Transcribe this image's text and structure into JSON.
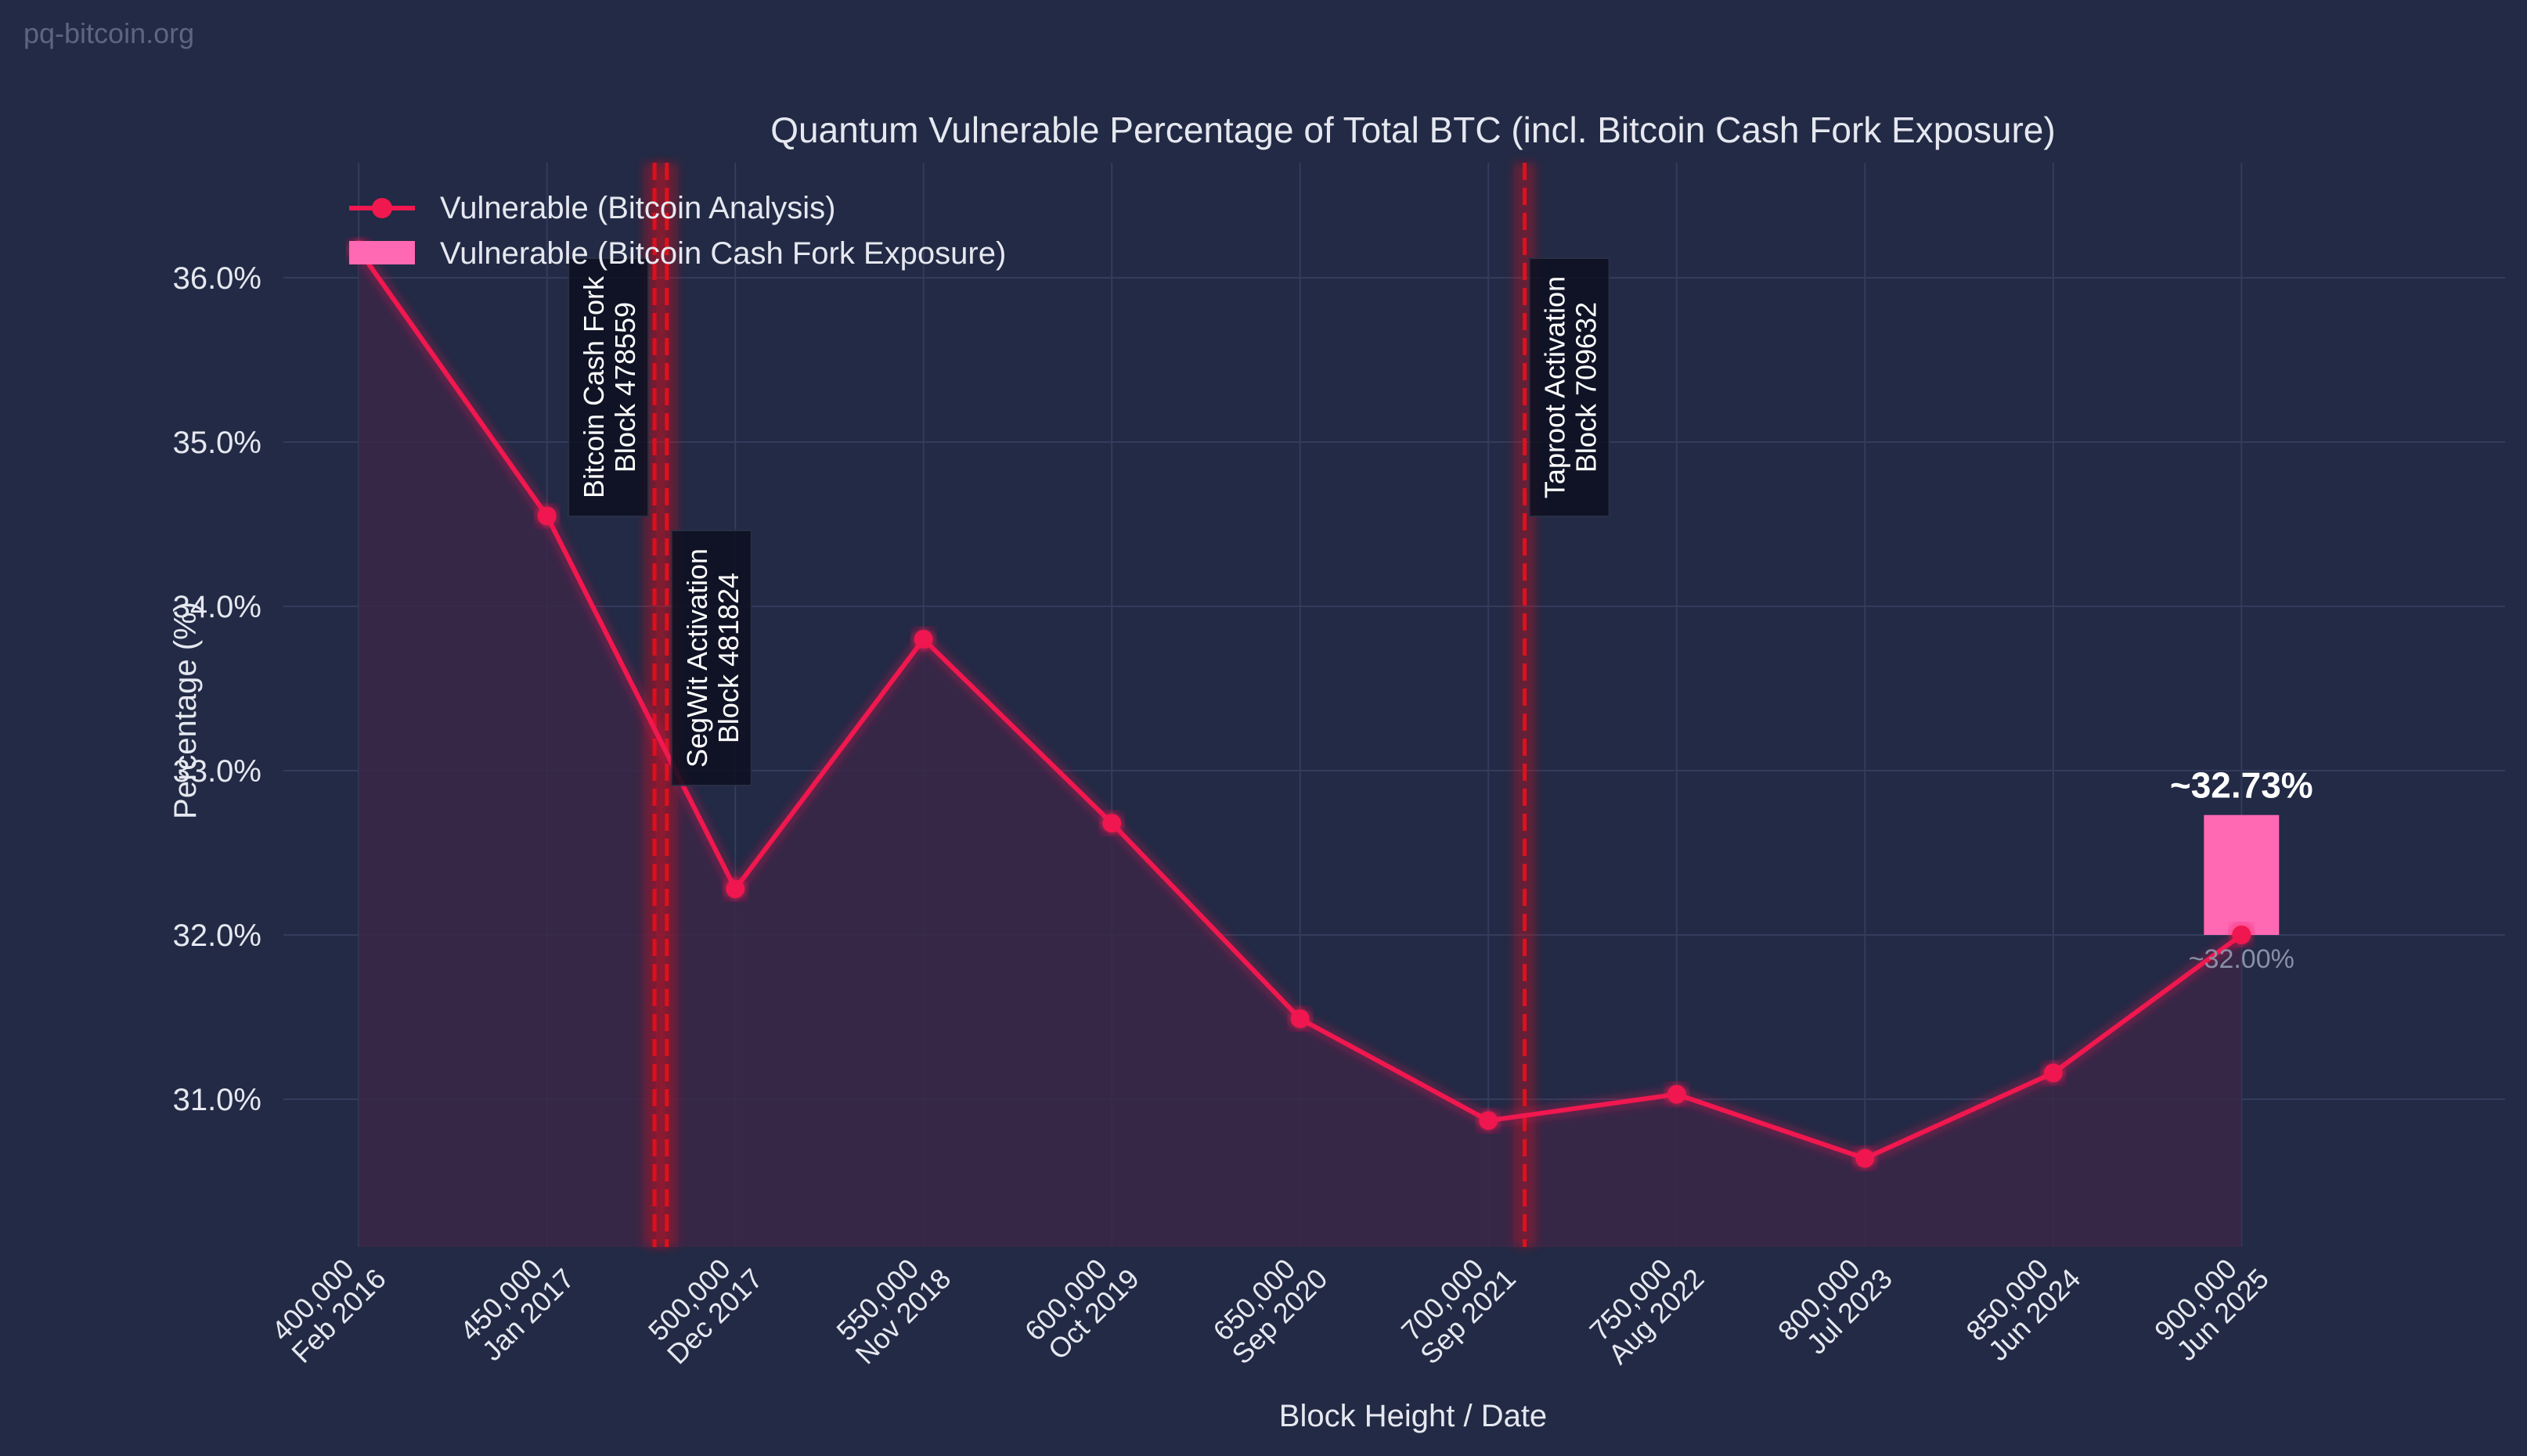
{
  "watermark": "pq-bitcoin.org",
  "colors": {
    "background": "#222a45",
    "line": "#f0184f",
    "fill": "#3a2748",
    "grid": "#333c5c",
    "bar": "#ff69b4",
    "event_line": "#e0101c"
  },
  "chart_data": {
    "type": "line",
    "title": "Quantum Vulnerable Percentage of Total BTC (incl. Bitcoin Cash Fork Exposure)",
    "xlabel": "Block Height / Date",
    "ylabel": "Percentage (%)",
    "xlim": [
      380000,
      970000
    ],
    "ylim": [
      30.1,
      36.7
    ],
    "grid": true,
    "legend_position": "top-left",
    "x_ticks": [
      {
        "value": 400000,
        "line1": "400,000",
        "line2": "Feb 2016"
      },
      {
        "value": 450000,
        "line1": "450,000",
        "line2": "Jan 2017"
      },
      {
        "value": 500000,
        "line1": "500,000",
        "line2": "Dec 2017"
      },
      {
        "value": 550000,
        "line1": "550,000",
        "line2": "Nov 2018"
      },
      {
        "value": 600000,
        "line1": "600,000",
        "line2": "Oct 2019"
      },
      {
        "value": 650000,
        "line1": "650,000",
        "line2": "Sep 2020"
      },
      {
        "value": 700000,
        "line1": "700,000",
        "line2": "Sep 2021"
      },
      {
        "value": 750000,
        "line1": "750,000",
        "line2": "Aug 2022"
      },
      {
        "value": 800000,
        "line1": "800,000",
        "line2": "Jul 2023"
      },
      {
        "value": 850000,
        "line1": "850,000",
        "line2": "Jun 2024"
      },
      {
        "value": 900000,
        "line1": "900,000",
        "line2": "Jun 2025"
      }
    ],
    "y_ticks": [
      {
        "value": 31,
        "label": "31.0%"
      },
      {
        "value": 32,
        "label": "32.0%"
      },
      {
        "value": 33,
        "label": "33.0%"
      },
      {
        "value": 34,
        "label": "34.0%"
      },
      {
        "value": 35,
        "label": "35.0%"
      },
      {
        "value": 36,
        "label": "36.0%"
      }
    ],
    "series": [
      {
        "name": "Vulnerable (Bitcoin Analysis)",
        "x": [
          400000,
          450000,
          500000,
          550000,
          600000,
          650000,
          700000,
          750000,
          800000,
          850000,
          900000
        ],
        "y": [
          36.17,
          34.55,
          32.28,
          33.8,
          32.68,
          31.49,
          30.87,
          31.03,
          30.64,
          31.16,
          32.0
        ]
      }
    ],
    "fork_exposure": {
      "name": "Vulnerable (Bitcoin Cash Fork Exposure)",
      "x": 900000,
      "bottom": 32.0,
      "top": 32.73,
      "top_label": "~32.73%",
      "bottom_label": "~32.00%"
    },
    "events": [
      {
        "block": 478559,
        "line1": "Bitcoin Cash Fork",
        "line2": "Block 478559"
      },
      {
        "block": 481824,
        "line1": "SegWit Activation",
        "line2": "Block 481824"
      },
      {
        "block": 709632,
        "line1": "Taproot Activation",
        "line2": "Block 709632"
      }
    ]
  }
}
